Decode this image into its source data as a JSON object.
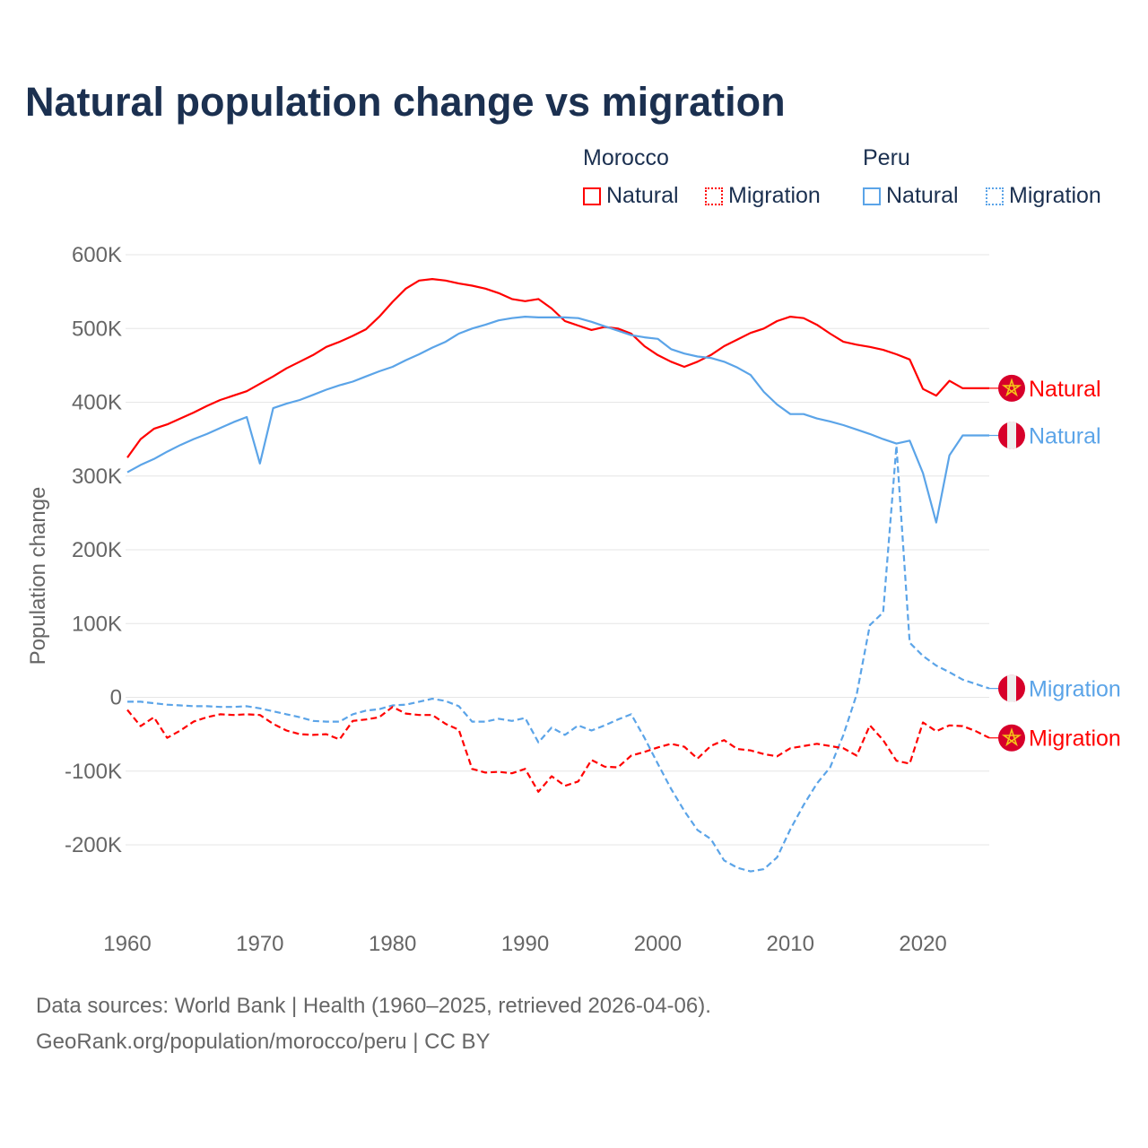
{
  "title": "Natural population change vs migration",
  "legend": {
    "groups": [
      {
        "country": "Morocco",
        "items": [
          "Natural",
          "Migration"
        ],
        "color": "#ff0000"
      },
      {
        "country": "Peru",
        "items": [
          "Natural",
          "Migration"
        ],
        "color": "#5ba4e8"
      }
    ]
  },
  "footer": {
    "line1": "Data sources: World Bank | Health (1960–2025, retrieved 2026-04-06).",
    "line2": "GeoRank.org/population/morocco/peru | CC BY"
  },
  "chart_data": {
    "type": "line",
    "title": "Natural population change vs migration",
    "ylabel": "Population change",
    "xlabel": "",
    "xlim": [
      1960,
      2025
    ],
    "ylim": [
      -200000,
      600000
    ],
    "xticks": [
      1960,
      1970,
      1980,
      1990,
      2000,
      2010,
      2020
    ],
    "yticks": [
      {
        "v": 600000,
        "label": "600K"
      },
      {
        "v": 500000,
        "label": "500K"
      },
      {
        "v": 400000,
        "label": "400K"
      },
      {
        "v": 300000,
        "label": "300K"
      },
      {
        "v": 200000,
        "label": "200K"
      },
      {
        "v": 100000,
        "label": "100K"
      },
      {
        "v": 0,
        "label": "0"
      },
      {
        "v": -100000,
        "label": "-100K"
      },
      {
        "v": -200000,
        "label": "-200K"
      }
    ],
    "grid": true,
    "x_start": 1960,
    "series": [
      {
        "name": "Morocco Natural",
        "label": "Natural",
        "country": "Morocco",
        "color": "#ff0000",
        "dashed": false,
        "flag": "morocco",
        "values": [
          325,
          350,
          364,
          370,
          378,
          386,
          395,
          403,
          409,
          415,
          425,
          435,
          446,
          455,
          464,
          475,
          482,
          490,
          499,
          516,
          536,
          554,
          565,
          567,
          565,
          561,
          558,
          554,
          548,
          540,
          537,
          540,
          527,
          510,
          504,
          498,
          502,
          500,
          493,
          476,
          464,
          455,
          448,
          455,
          464,
          476,
          485,
          494,
          500,
          510,
          516,
          514,
          505,
          493,
          482,
          478,
          475,
          471,
          465,
          458,
          418,
          409,
          429,
          419,
          419,
          419
        ]
      },
      {
        "name": "Peru Natural",
        "label": "Natural",
        "country": "Peru",
        "color": "#5ba4e8",
        "dashed": false,
        "flag": "peru",
        "values": [
          305,
          315,
          323,
          333,
          342,
          350,
          357,
          365,
          373,
          380,
          317,
          392,
          398,
          403,
          410,
          417,
          423,
          428,
          435,
          442,
          448,
          457,
          465,
          474,
          482,
          493,
          500,
          505,
          511,
          514,
          516,
          515,
          515,
          515,
          514,
          509,
          503,
          497,
          491,
          488,
          486,
          472,
          466,
          462,
          460,
          455,
          447,
          437,
          414,
          397,
          384,
          384,
          378,
          374,
          369,
          363,
          357,
          350,
          344,
          348,
          304,
          237,
          328,
          355,
          355,
          355
        ]
      },
      {
        "name": "Peru Migration",
        "label": "Migration",
        "country": "Peru",
        "color": "#5ba4e8",
        "dashed": true,
        "flag": "peru",
        "values": [
          -6,
          -6,
          -8,
          -10,
          -11,
          -12,
          -12,
          -13,
          -13,
          -12,
          -15,
          -19,
          -23,
          -27,
          -32,
          -33,
          -33,
          -23,
          -18,
          -16,
          -11,
          -10,
          -6,
          -2,
          -5,
          -12,
          -33,
          -33,
          -29,
          -32,
          -28,
          -61,
          -41,
          -51,
          -38,
          -45,
          -38,
          -30,
          -23,
          -55,
          -90,
          -124,
          -154,
          -180,
          -192,
          -221,
          -231,
          -236,
          -233,
          -217,
          -179,
          -146,
          -117,
          -95,
          -51,
          4,
          98,
          115,
          341,
          74,
          56,
          43,
          34,
          24,
          18,
          12
        ]
      },
      {
        "name": "Morocco Migration",
        "label": "Migration",
        "country": "Morocco",
        "color": "#ff0000",
        "dashed": true,
        "flag": "morocco",
        "values": [
          -17,
          -39,
          -27,
          -55,
          -45,
          -33,
          -27,
          -23,
          -24,
          -23,
          -24,
          -36,
          -45,
          -50,
          -51,
          -50,
          -57,
          -32,
          -30,
          -27,
          -13,
          -22,
          -24,
          -24,
          -36,
          -44,
          -97,
          -102,
          -101,
          -103,
          -97,
          -128,
          -107,
          -120,
          -114,
          -85,
          -94,
          -95,
          -79,
          -74,
          -68,
          -63,
          -67,
          -83,
          -66,
          -58,
          -70,
          -72,
          -77,
          -80,
          -69,
          -66,
          -63,
          -66,
          -69,
          -79,
          -38,
          -58,
          -86,
          -90,
          -34,
          -46,
          -38,
          -39,
          -46,
          -55
        ]
      }
    ],
    "value_unit": "thousands"
  }
}
